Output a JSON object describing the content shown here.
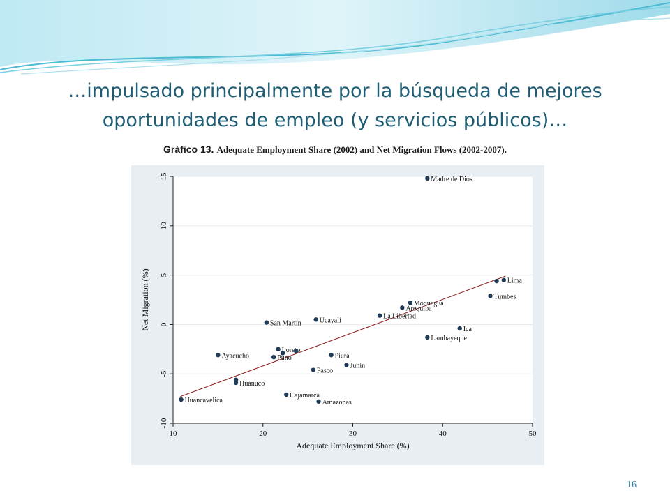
{
  "slide": {
    "title": "…impulsado principalmente por la búsqueda de mejores oportunidades de empleo (y servicios públicos)…",
    "caption_label": "Gráfico 13.",
    "caption_text": "Adequate Employment Share (2002) and Net Migration Flows (2002-2007).",
    "page_number": "16"
  },
  "colors": {
    "title": "#1f5d74",
    "marker": "#1f3b57",
    "fit_line": "#8b1a1a",
    "panel_bg": "#e9eef2",
    "plot_bg": "#ffffff",
    "wave_teal": "#7fd3e6"
  },
  "chart_data": {
    "type": "scatter",
    "xlabel": "Adequate Employment Share (%)",
    "ylabel": "Net Migration (%)",
    "xlim": [
      10,
      50
    ],
    "ylim": [
      -10,
      15
    ],
    "xticks": [
      10,
      20,
      30,
      40,
      50
    ],
    "yticks": [
      -10,
      -5,
      0,
      5,
      10,
      15
    ],
    "grid": true,
    "points": [
      {
        "label": "Madre de Dios",
        "x": 38.3,
        "y": 14.8
      },
      {
        "label": "Lima",
        "x": 46.8,
        "y": 4.5
      },
      {
        "label": "",
        "x": 46.0,
        "y": 4.4
      },
      {
        "label": "Tumbes",
        "x": 45.3,
        "y": 2.9
      },
      {
        "label": "Moquegua",
        "x": 36.4,
        "y": 2.2
      },
      {
        "label": "Arequipa",
        "x": 35.5,
        "y": 1.7
      },
      {
        "label": "La Libertad",
        "x": 33.0,
        "y": 0.9
      },
      {
        "label": "Ica",
        "x": 41.9,
        "y": -0.4
      },
      {
        "label": "Lambayeque",
        "x": 38.3,
        "y": -1.3
      },
      {
        "label": "Ucayali",
        "x": 25.9,
        "y": 0.5
      },
      {
        "label": "San Martín",
        "x": 20.4,
        "y": 0.2
      },
      {
        "label": "Loreto",
        "x": 21.7,
        "y": -2.5
      },
      {
        "label": "",
        "x": 22.2,
        "y": -2.9
      },
      {
        "label": "",
        "x": 23.7,
        "y": -2.7
      },
      {
        "label": "Puno",
        "x": 21.2,
        "y": -3.3
      },
      {
        "label": "Ayacucho",
        "x": 15.0,
        "y": -3.1
      },
      {
        "label": "Piura",
        "x": 27.6,
        "y": -3.1
      },
      {
        "label": "Junín",
        "x": 29.3,
        "y": -4.1
      },
      {
        "label": "Pasco",
        "x": 25.6,
        "y": -4.6
      },
      {
        "label": "Huánuco",
        "x": 17.0,
        "y": -5.9
      },
      {
        "label": "",
        "x": 17.0,
        "y": -5.6
      },
      {
        "label": "Cajamarca",
        "x": 22.6,
        "y": -7.1
      },
      {
        "label": "Huancavelica",
        "x": 10.9,
        "y": -7.6
      },
      {
        "label": "Amazonas",
        "x": 26.2,
        "y": -7.8
      }
    ],
    "fit_line": {
      "x": [
        10.8,
        47.0
      ],
      "y": [
        -7.3,
        4.9
      ]
    }
  }
}
